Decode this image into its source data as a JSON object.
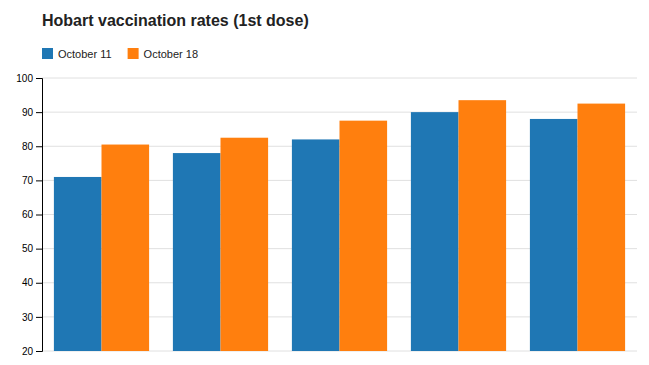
{
  "chart_data": {
    "type": "bar",
    "title": "Hobart vaccination rates (1st dose)",
    "categories": [
      null,
      null,
      null,
      null,
      null
    ],
    "series": [
      {
        "name": "October 11",
        "values": [
          71,
          78,
          82,
          90,
          88
        ]
      },
      {
        "name": "October 18",
        "values": [
          80.5,
          82.5,
          87.5,
          93.5,
          92.5
        ]
      }
    ],
    "ylim": [
      20,
      100
    ],
    "yticks": [
      20,
      30,
      40,
      50,
      60,
      70,
      80,
      90,
      100
    ],
    "grid": true,
    "legend": "upper left",
    "tick_labels": "y"
  }
}
